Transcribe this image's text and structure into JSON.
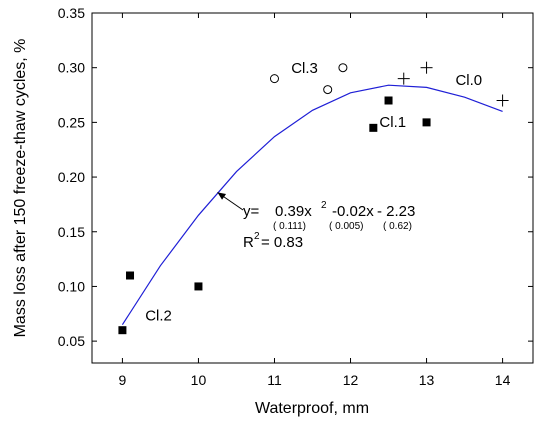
{
  "chart_data": {
    "type": "scatter",
    "xlabel": "Waterproof, mm",
    "ylabel": "Mass loss after 150 freeze-thaw cycles, %",
    "xlim": [
      8.6,
      14.4
    ],
    "ylim": [
      0.03,
      0.35
    ],
    "xticks": [
      9,
      10,
      11,
      12,
      13,
      14
    ],
    "yticks": [
      0.05,
      0.1,
      0.15,
      0.2,
      0.25,
      0.3,
      0.35
    ],
    "xtick_labels": [
      "9",
      "10",
      "11",
      "12",
      "13",
      "14"
    ],
    "ytick_labels": [
      "0.05",
      "0.10",
      "0.15",
      "0.20",
      "0.25",
      "0.30",
      "0.35"
    ],
    "series": [
      {
        "marker": "filled-square",
        "points": [
          [
            9.0,
            0.06
          ],
          [
            9.1,
            0.11
          ],
          [
            10.0,
            0.1
          ],
          [
            12.3,
            0.245
          ],
          [
            12.5,
            0.27
          ],
          [
            13.0,
            0.25
          ]
        ]
      },
      {
        "marker": "open-circle",
        "points": [
          [
            11.0,
            0.29
          ],
          [
            11.7,
            0.28
          ],
          [
            11.9,
            0.3
          ]
        ]
      },
      {
        "marker": "plus",
        "points": [
          [
            12.7,
            0.29
          ],
          [
            13.0,
            0.3
          ],
          [
            14.0,
            0.27
          ]
        ]
      }
    ],
    "fit_curve": {
      "color": "#1f1fd6",
      "points": [
        [
          9.0,
          0.065
        ],
        [
          9.5,
          0.119
        ],
        [
          10.0,
          0.165
        ],
        [
          10.5,
          0.205
        ],
        [
          11.0,
          0.237
        ],
        [
          11.5,
          0.261
        ],
        [
          12.0,
          0.277
        ],
        [
          12.5,
          0.284
        ],
        [
          13.0,
          0.282
        ],
        [
          13.5,
          0.273
        ],
        [
          14.0,
          0.26
        ]
      ]
    },
    "group_labels": [
      {
        "text": "Cl.3",
        "x": 11.22,
        "y": 0.295
      },
      {
        "text": "Cl.1",
        "x": 12.38,
        "y": 0.246
      },
      {
        "text": "Cl.0",
        "x": 13.38,
        "y": 0.284
      },
      {
        "text": "Cl.2",
        "x": 9.3,
        "y": 0.069
      }
    ],
    "equation": {
      "line": [
        "y=",
        "0.39x",
        "2",
        "-0.02x",
        "- 2.23"
      ],
      "std_errors": [
        "( 0.111)",
        "( 0.005)",
        "( 0.62)"
      ],
      "r2": [
        "R",
        "2",
        "= 0.83"
      ],
      "arrow_target": [
        10.25,
        0.186
      ]
    }
  }
}
